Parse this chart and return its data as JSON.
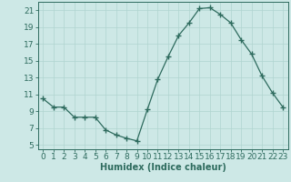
{
  "x": [
    0,
    1,
    2,
    3,
    4,
    5,
    6,
    7,
    8,
    9,
    10,
    11,
    12,
    13,
    14,
    15,
    16,
    17,
    18,
    19,
    20,
    21,
    22,
    23
  ],
  "y": [
    10.5,
    9.5,
    9.5,
    8.3,
    8.3,
    8.3,
    6.8,
    6.2,
    5.8,
    5.5,
    9.2,
    12.8,
    15.5,
    18.0,
    19.5,
    21.2,
    21.3,
    20.5,
    19.5,
    17.5,
    15.8,
    13.2,
    11.2,
    9.5
  ],
  "line_color": "#2e6b5e",
  "marker": "+",
  "marker_size": 4,
  "bg_color": "#cde8e6",
  "grid_color": "#b0d4d0",
  "xlabel": "Humidex (Indice chaleur)",
  "xlabel_fontsize": 7,
  "yticks": [
    5,
    7,
    9,
    11,
    13,
    15,
    17,
    19,
    21
  ],
  "xticks": [
    0,
    1,
    2,
    3,
    4,
    5,
    6,
    7,
    8,
    9,
    10,
    11,
    12,
    13,
    14,
    15,
    16,
    17,
    18,
    19,
    20,
    21,
    22,
    23
  ],
  "xlim": [
    -0.5,
    23.5
  ],
  "ylim": [
    4.5,
    22.0
  ],
  "tick_fontsize": 6.5,
  "tick_color": "#2e6b5e",
  "spine_color": "#2e6b5e",
  "line_width": 0.9
}
